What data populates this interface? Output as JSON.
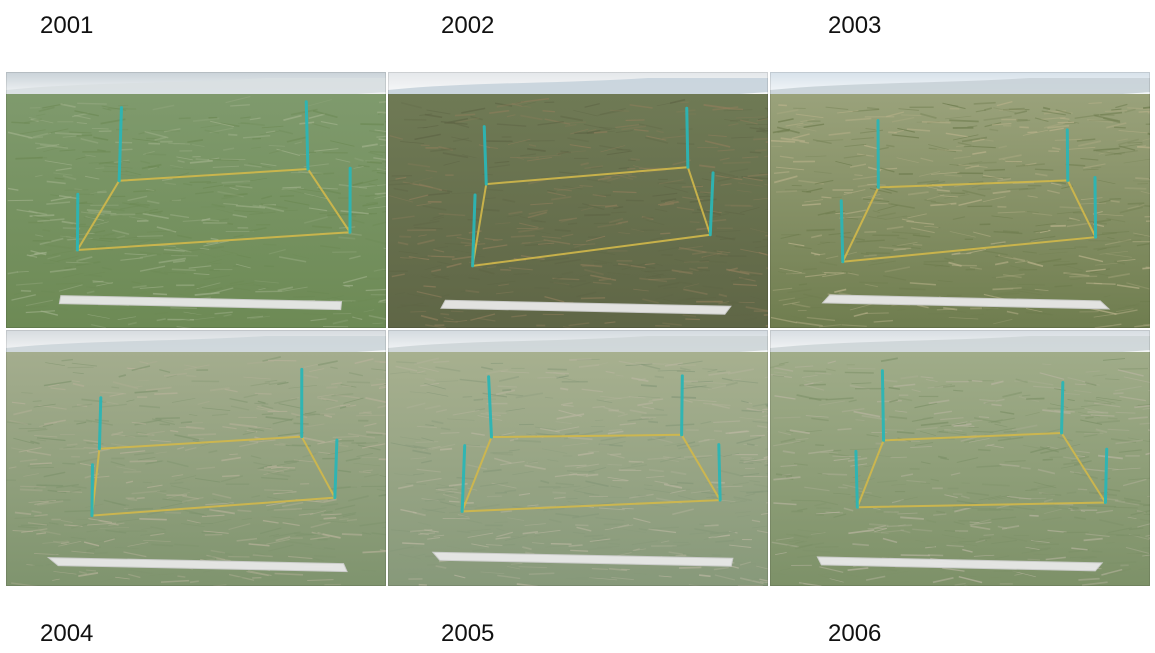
{
  "panels": [
    {
      "year": "2001",
      "sky": "#c9d2d8",
      "water": "#d9dfe2",
      "grass_top": "#7f9a6d",
      "grass_bottom": "#6d8a55",
      "accent": "#9fb08a"
    },
    {
      "year": "2002",
      "sky": "#e4e7ea",
      "water": "#c8d4dc",
      "grass_top": "#6f7a55",
      "grass_bottom": "#5f6646",
      "accent": "#8e7d5b"
    },
    {
      "year": "2003",
      "sky": "#d7e1ea",
      "water": "#c9d3d8",
      "grass_top": "#9aa27b",
      "grass_bottom": "#6f7d4f",
      "accent": "#b8b18a"
    },
    {
      "year": "2004",
      "sky": "#d6dbdf",
      "water": "#cdd6da",
      "grass_top": "#a4ad8e",
      "grass_bottom": "#7f946e",
      "accent": "#b7b29a"
    },
    {
      "year": "2005",
      "sky": "#d3dadf",
      "water": "#cfd6d8",
      "grass_top": "#a7b08f",
      "grass_bottom": "#87997a",
      "accent": "#b9b6a0"
    },
    {
      "year": "2006",
      "sky": "#d7dde2",
      "water": "#cfd6d8",
      "grass_top": "#a0ac89",
      "grass_bottom": "#7d9168",
      "accent": "#b7b49f"
    }
  ],
  "colors": {
    "pole": "#2bb6b6",
    "tape": "#d2b84a",
    "frame": "#e9e9e9"
  }
}
